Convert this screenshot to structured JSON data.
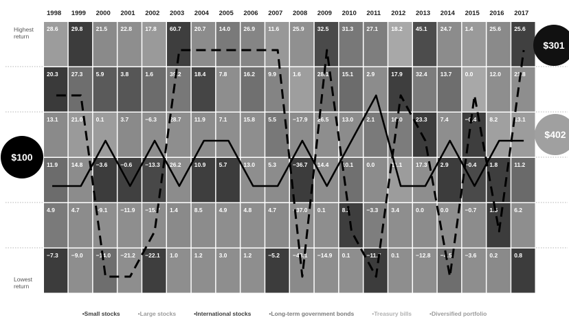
{
  "chart_data": {
    "type": "table",
    "years": [
      "1998",
      "1999",
      "2000",
      "2001",
      "2002",
      "2003",
      "2004",
      "2005",
      "2006",
      "2007",
      "2008",
      "2009",
      "2010",
      "2011",
      "2012",
      "2013",
      "2014",
      "2015",
      "2016",
      "2017"
    ],
    "row_labels": {
      "top": "Highest return",
      "bottom": "Lowest return"
    },
    "rows": [
      [
        28.6,
        29.8,
        21.5,
        22.8,
        17.8,
        60.7,
        20.7,
        14.0,
        26.9,
        11.6,
        25.9,
        32.5,
        31.3,
        27.1,
        18.2,
        45.1,
        24.7,
        1.4,
        25.6,
        25.6
      ],
      [
        20.3,
        27.3,
        5.9,
        3.8,
        1.6,
        39.2,
        18.4,
        7.8,
        16.2,
        9.9,
        1.6,
        28.1,
        15.1,
        2.9,
        17.9,
        32.4,
        13.7,
        0.0,
        12.0,
        21.8
      ],
      [
        13.1,
        21.0,
        0.1,
        3.7,
        -6.3,
        28.7,
        11.9,
        7.1,
        15.8,
        5.5,
        -17.9,
        26.5,
        13.0,
        2.1,
        16.0,
        23.3,
        7.4,
        -0.4,
        8.2,
        13.1
      ],
      [
        11.9,
        14.8,
        -3.6,
        -0.6,
        -13.3,
        26.2,
        10.9,
        5.7,
        13.0,
        5.3,
        -36.7,
        14.4,
        10.1,
        0.0,
        11.1,
        17.3,
        2.9,
        -0.4,
        1.8,
        11.2
      ],
      [
        4.9,
        4.7,
        -9.1,
        -11.9,
        -15.7,
        1.4,
        8.5,
        4.9,
        4.8,
        4.7,
        -37.0,
        0.1,
        8.2,
        -3.3,
        3.4,
        0.0,
        0.0,
        -0.7,
        1.5,
        6.2
      ],
      [
        -7.3,
        -9.0,
        -14.0,
        -21.2,
        -22.1,
        1.0,
        1.2,
        3.0,
        1.2,
        -5.2,
        -43.1,
        -14.9,
        0.1,
        -11.7,
        0.1,
        -12.8,
        -4.5,
        -3.6,
        0.2,
        0.8
      ]
    ],
    "cell_shades": [
      [
        "#9c9c9c",
        "#3c3c3c",
        "#8a8a8a",
        "#8e8e8e",
        "#9a9a9a",
        "#3e3e3e",
        "#8c8c8c",
        "#7a7a7a",
        "#858585",
        "#989898",
        "#909090",
        "#4a4a4a",
        "#787878",
        "#7e7e7e",
        "#a8a8a8",
        "#4c4c4c",
        "#8c8c8c",
        "#9a9a9a",
        "#8a8a8a",
        "#404040"
      ],
      [
        "#3a3a3a",
        "#6e6e6e",
        "#5a5a5a",
        "#565656",
        "#6c6c6c",
        "#787878",
        "#454545",
        "#8e8e8e",
        "#707070",
        "#848484",
        "#9e9e9e",
        "#6c6c6c",
        "#6c6c6c",
        "#8c8c8c",
        "#3e3e3e",
        "#7c7c7c",
        "#6e6e6e",
        "#a8a8a8",
        "#8e8e8e",
        "#8e8e8e"
      ],
      [
        "#8a8a8a",
        "#9a9a9a",
        "#9c9c9c",
        "#8a8a8a",
        "#8e8e8e",
        "#8e8e8e",
        "#8c8c8c",
        "#8e8e8e",
        "#8e8e8e",
        "#787878",
        "#8c8c8c",
        "#8e8e8e",
        "#8c8c8c",
        "#7a7a7a",
        "#7c7c7c",
        "#3c3c3c",
        "#8e8e8e",
        "#3e3e3e",
        "#a0a0a0",
        "#9c9c9c"
      ],
      [
        "#6c6c6c",
        "#8c8c8c",
        "#3c3c3c",
        "#404040",
        "#484848",
        "#8c8c8c",
        "#3e3e3e",
        "#3c3c3c",
        "#8e8e8e",
        "#8c8c8c",
        "#3c3c3c",
        "#8e8e8e",
        "#707070",
        "#8c8c8c",
        "#9c9c9c",
        "#8e8e8e",
        "#3c3c3c",
        "#4a4a4a",
        "#3e3e3e",
        "#6a6a6a"
      ],
      [
        "#7a7a7a",
        "#8c8c8c",
        "#8e8e8e",
        "#8e8e8e",
        "#8c8c8c",
        "#8a8a8a",
        "#8c8c8c",
        "#8e8e8e",
        "#8e8e8e",
        "#8a8a8a",
        "#8e8e8e",
        "#8e8e8e",
        "#3e3e3e",
        "#7e7e7e",
        "#8e8e8e",
        "#8c8c8c",
        "#8e8e8e",
        "#8c8c8c",
        "#3c3c3c",
        "#8e8e8e"
      ],
      [
        "#3c3c3c",
        "#8e8e8e",
        "#6e6e6e",
        "#8e8e8e",
        "#3e3e3e",
        "#8e8e8e",
        "#8e8e8e",
        "#8e8e8e",
        "#8e8e8e",
        "#3c3c3c",
        "#8a8a8a",
        "#8e8e8e",
        "#8e8e8e",
        "#3c3c3c",
        "#8e8e8e",
        "#8e8e8e",
        "#6e6e6e",
        "#8e8e8e",
        "#8a8a8a",
        "#3c3c3c"
      ]
    ],
    "overlay_lines": [
      {
        "style": "solid",
        "ranks": [
          4,
          4,
          3,
          4,
          3,
          4,
          3,
          3,
          4,
          4,
          3,
          4,
          3,
          2,
          4,
          4,
          3,
          4,
          3,
          3
        ]
      },
      {
        "style": "dashed",
        "ranks": [
          2,
          2,
          6,
          6,
          5,
          1,
          1,
          1,
          1,
          1,
          6,
          1,
          5,
          6,
          2,
          3,
          6,
          2,
          5,
          1
        ]
      }
    ],
    "start_label": "$100",
    "end_labels": [
      "$301",
      "$402"
    ],
    "legend": [
      {
        "label": "Small stocks",
        "color": "#3a3a3a"
      },
      {
        "label": "Large stocks",
        "color": "#9a9a9a"
      },
      {
        "label": "International stocks",
        "color": "#3a3a3a"
      },
      {
        "label": "Long-term government bonds",
        "color": "#7a7a7a"
      },
      {
        "label": "Treasury bills",
        "color": "#b0b0b0"
      },
      {
        "label": "Diversified portfolio",
        "color": "#9a9a9a"
      }
    ]
  }
}
